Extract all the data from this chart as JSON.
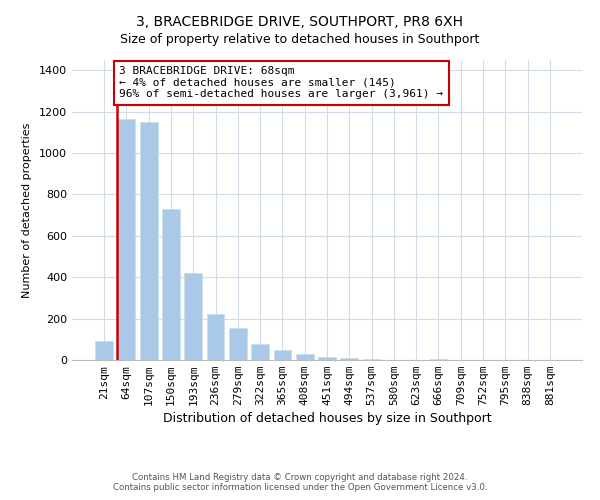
{
  "title": "3, BRACEBRIDGE DRIVE, SOUTHPORT, PR8 6XH",
  "subtitle": "Size of property relative to detached houses in Southport",
  "xlabel": "Distribution of detached houses by size in Southport",
  "ylabel": "Number of detached properties",
  "bar_labels": [
    "21sqm",
    "64sqm",
    "107sqm",
    "150sqm",
    "193sqm",
    "236sqm",
    "279sqm",
    "322sqm",
    "365sqm",
    "408sqm",
    "451sqm",
    "494sqm",
    "537sqm",
    "580sqm",
    "623sqm",
    "666sqm",
    "709sqm",
    "752sqm",
    "795sqm",
    "838sqm",
    "881sqm"
  ],
  "bar_values": [
    90,
    1165,
    1150,
    730,
    420,
    220,
    155,
    75,
    50,
    28,
    15,
    10,
    5,
    0,
    0,
    4,
    0,
    0,
    0,
    0,
    0
  ],
  "bar_color": "#aac8e8",
  "bar_edge_color": "#c8ddf0",
  "highlight_color": "#cc0000",
  "highlight_index": 1,
  "annotation_text": "3 BRACEBRIDGE DRIVE: 68sqm\n← 4% of detached houses are smaller (145)\n96% of semi-detached houses are larger (3,961) →",
  "annotation_box_facecolor": "#ffffff",
  "annotation_box_edgecolor": "#cc0000",
  "ylim": [
    0,
    1450
  ],
  "yticks": [
    0,
    200,
    400,
    600,
    800,
    1000,
    1200,
    1400
  ],
  "footer1": "Contains HM Land Registry data © Crown copyright and database right 2024.",
  "footer2": "Contains public sector information licensed under the Open Government Licence v3.0.",
  "bg_color": "#ffffff",
  "grid_color": "#d0dce8",
  "title_fontsize": 10,
  "subtitle_fontsize": 9,
  "xlabel_fontsize": 9,
  "ylabel_fontsize": 8,
  "tick_fontsize": 8,
  "annotation_fontsize": 8
}
